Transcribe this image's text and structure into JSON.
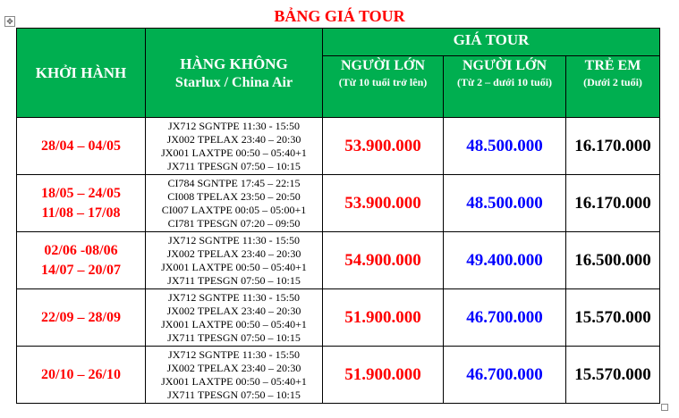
{
  "title": "BẢNG GIÁ TOUR",
  "header": {
    "depart": "KHỞI HÀNH",
    "airline": "HÀNG KHÔNG",
    "airline_sub": "Starlux / China Air",
    "price": "GIÁ TOUR",
    "adult": "NGƯỜI LỚN",
    "adult_sub": "(Từ 10 tuổi trở lên)",
    "child": "NGƯỜI LỚN",
    "child_sub": "(Từ 2 – dưới 10 tuổi)",
    "infant": "TRẺ EM",
    "infant_sub": "(Dưới 2 tuổi)"
  },
  "rows": [
    {
      "dates": [
        "28/04 – 04/05"
      ],
      "flights": [
        "JX712 SGNTPE 11:30 - 15:50",
        "JX002 TPELAX 23:40 – 20:30",
        "JX001 LAXTPE 00:50 – 05:40+1",
        "JX711 TPESGN 07:50 – 10:15"
      ],
      "adult": "53.900.000",
      "child": "48.500.000",
      "infant": "16.170.000"
    },
    {
      "dates": [
        "18/05 – 24/05",
        "11/08 – 17/08"
      ],
      "flights": [
        "CI784 SGNTPE 17:45 – 22:15",
        "CI008 TPELAX 23:50 – 20:50",
        "CI007 LAXTPE 00:05 – 05:00+1",
        "CI781 TPESGN 07:20 – 09:50"
      ],
      "adult": "53.900.000",
      "child": "48.500.000",
      "infant": "16.170.000"
    },
    {
      "dates": [
        "02/06 -08/06",
        "14/07 – 20/07"
      ],
      "flights": [
        "JX712 SGNTPE 11:30 - 15:50",
        "JX002 TPELAX 23:40 – 20:30",
        "JX001 LAXTPE 00:50 – 05:40+1",
        "JX711 TPESGN 07:50 – 10:15"
      ],
      "adult": "54.900.000",
      "child": "49.400.000",
      "infant": "16.500.000"
    },
    {
      "dates": [
        "22/09 – 28/09"
      ],
      "flights": [
        "JX712 SGNTPE 11:30 - 15:50",
        "JX002 TPELAX 23:40 – 20:30",
        "JX001 LAXTPE 00:50 – 05:40+1",
        "JX711 TPESGN 07:50 – 10:15"
      ],
      "adult": "51.900.000",
      "child": "46.700.000",
      "infant": "15.570.000"
    },
    {
      "dates": [
        "20/10 – 26/10"
      ],
      "flights": [
        "JX712 SGNTPE 11:30 - 15:50",
        "JX002 TPELAX 23:40 – 20:30",
        "JX001 LAXTPE 00:50 – 05:40+1",
        "JX711 TPESGN 07:50 – 10:15"
      ],
      "adult": "51.900.000",
      "child": "46.700.000",
      "infant": "15.570.000"
    }
  ],
  "colors": {
    "header_bg": "#00af50",
    "date": "#ff0000",
    "adult": "#ff0000",
    "child": "#0000ff",
    "infant": "#000000"
  }
}
